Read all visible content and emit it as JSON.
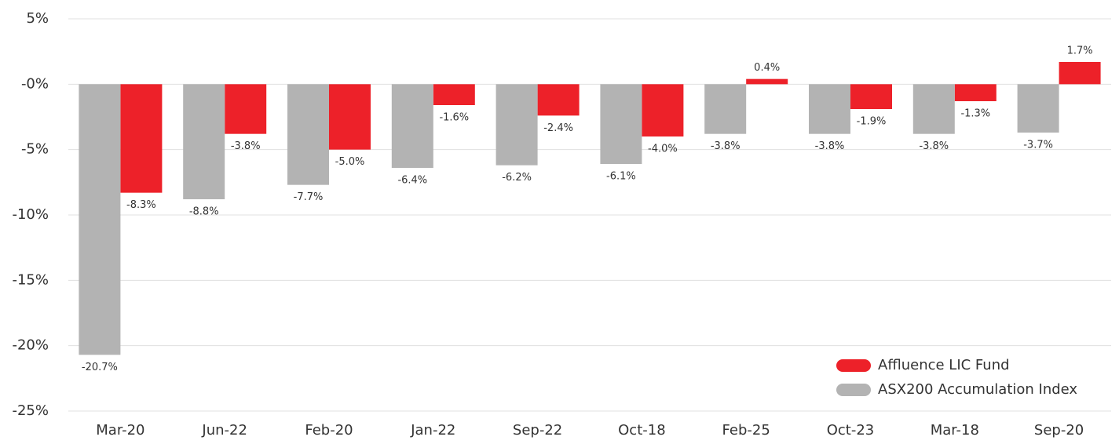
{
  "chart_data": {
    "type": "bar",
    "categories": [
      "Mar-20",
      "Jun-22",
      "Feb-20",
      "Jan-22",
      "Sep-22",
      "Oct-18",
      "Feb-25",
      "Oct-23",
      "Mar-18",
      "Sep-20"
    ],
    "series": [
      {
        "name": "Affluence LIC Fund",
        "color": "#ed2129",
        "values": [
          -8.3,
          -3.8,
          -5.0,
          -1.6,
          -2.4,
          -4.0,
          0.4,
          -1.9,
          -1.3,
          1.7
        ],
        "value_labels": [
          "-8.3%",
          "-3.8%",
          "-5.0%",
          "-1.6%",
          "-2.4%",
          "-4.0%",
          "0.4%",
          "-1.9%",
          "-1.3%",
          "1.7%"
        ]
      },
      {
        "name": "ASX200 Accumulation Index",
        "color": "#b3b3b3",
        "values": [
          -20.7,
          -8.8,
          -7.7,
          -6.4,
          -6.2,
          -6.1,
          -3.8,
          -3.8,
          -3.8,
          -3.7
        ],
        "value_labels": [
          "-20.7%",
          "-8.8%",
          "-7.7%",
          "-6.4%",
          "-6.2%",
          "-6.1%",
          "-3.8%",
          "-3.8%",
          "-3.8%",
          "-3.7%"
        ]
      }
    ],
    "ylim": [
      -25,
      5
    ],
    "yticks": [
      {
        "value": 5,
        "label": "5%"
      },
      {
        "value": 0,
        "label": "-0%"
      },
      {
        "value": -5,
        "label": "-5%"
      },
      {
        "value": -10,
        "label": "-10%"
      },
      {
        "value": -15,
        "label": "-15%"
      },
      {
        "value": -20,
        "label": "-20%"
      },
      {
        "value": -25,
        "label": "-25%"
      }
    ],
    "grid": true,
    "legend": "lower right"
  }
}
